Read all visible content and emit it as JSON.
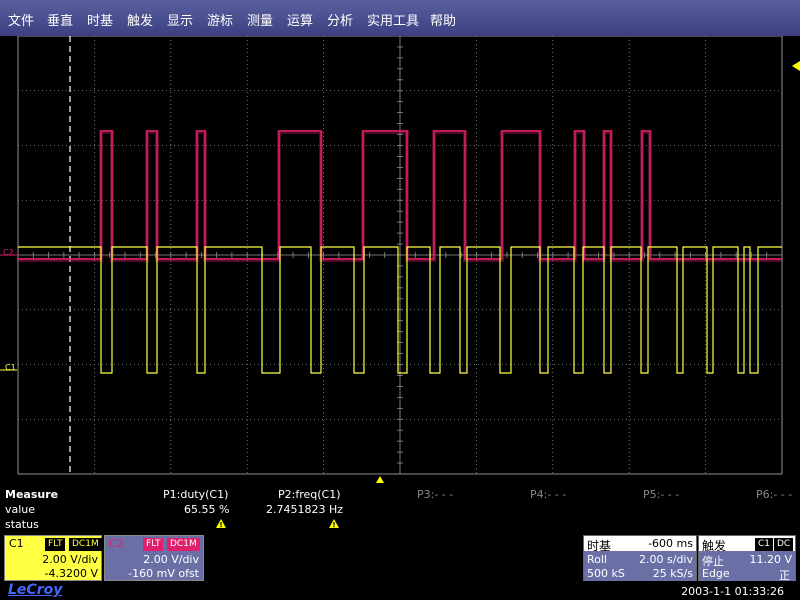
{
  "menu": [
    "文件",
    "垂直",
    "时基",
    "触发",
    "显示",
    "游标",
    "测量",
    "运算",
    "分析",
    "实用工具",
    "帮助"
  ],
  "channels": {
    "c2_marker": "C2",
    "c1_marker": "C1"
  },
  "measure": {
    "title": "Measure",
    "row_value": "value",
    "row_status": "status",
    "p1_header": "P1:duty(C1)",
    "p1_value": "65.55 %",
    "p2_header": "P2:freq(C1)",
    "p2_value": "2.7451823 Hz",
    "p3_header": "P3:- - -",
    "p4_header": "P4:- - -",
    "p5_header": "P5:- - -",
    "p6_header": "P6:- - -"
  },
  "c1_box": {
    "label": "C1",
    "flt": "FLT",
    "coupling": "DC1M",
    "vdiv": "2.00 V/div",
    "offset": "-4.3200 V",
    "color": "#ffff44"
  },
  "c2_box": {
    "label": "C2",
    "flt": "FLT",
    "coupling": "DC1M",
    "vdiv": "2.00 V/div",
    "offset": "-160 mV ofst",
    "color": "#e0206c"
  },
  "timebase": {
    "title": "时基",
    "delay": "-600 ms",
    "mode": "Roll",
    "tdiv": "2.00 s/div",
    "samples": "500 kS",
    "rate": "25 kS/s"
  },
  "trigger": {
    "title": "触发",
    "source": "C1",
    "coupling": "DC",
    "state": "停止",
    "level": "11.20 V",
    "type": "Edge",
    "slope": "正"
  },
  "footer": {
    "brand": "LeCroy",
    "datetime": "2003-1-1  01:33:26"
  },
  "colors": {
    "grid": "#909090",
    "c1_trace": "#ffff44",
    "c2_trace": "#e0206c",
    "menubar": "#4a4f90"
  }
}
